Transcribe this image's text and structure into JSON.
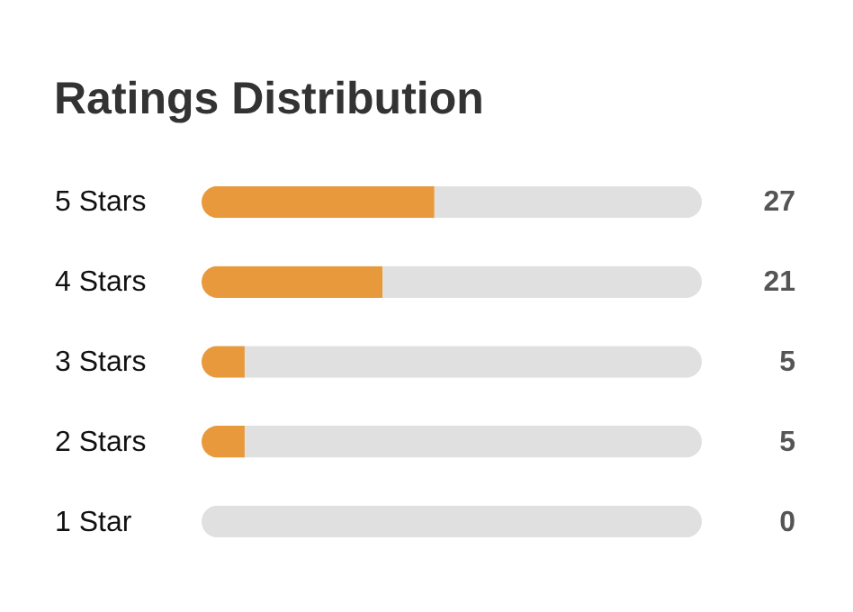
{
  "chart_data": {
    "type": "bar",
    "orientation": "horizontal",
    "stacked": true,
    "title": "Ratings Distribution",
    "categories": [
      "5 Stars",
      "4 Stars",
      "3 Stars",
      "2 Stars",
      "1 Star"
    ],
    "series": [
      {
        "color": "#e8993c",
        "values": [
          27,
          21,
          5,
          5,
          0
        ],
        "value_labels": [
          "27",
          "21",
          "5",
          "5",
          "0"
        ]
      },
      {
        "color": "#e0e0e0",
        "values": [
          31,
          37,
          53,
          53,
          58
        ]
      }
    ],
    "xlim": [
      0,
      58
    ],
    "tick_labels": "y"
  }
}
